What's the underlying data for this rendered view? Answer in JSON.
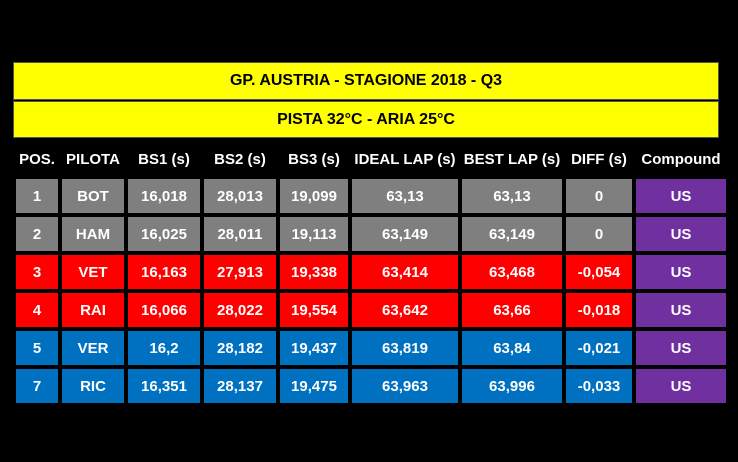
{
  "title": "GP. AUSTRIA - STAGIONE 2018 - Q3",
  "subtitle": "PISTA 32°C  - ARIA 25°C",
  "headers": [
    "POS.",
    "PILOTA",
    "BS1 (s)",
    "BS2 (s)",
    "BS3 (s)",
    "IDEAL LAP (s)",
    "BEST LAP (s)",
    "DIFF (s)",
    "Compound"
  ],
  "row_colors": {
    "gray": "#7f7f7f",
    "red": "#ff0000",
    "blue": "#0070c0",
    "compound": "#7030a0",
    "banner": "#ffff00"
  },
  "rows": [
    {
      "color": "gray",
      "cells": [
        "1",
        "BOT",
        "16,018",
        "28,013",
        "19,099",
        "63,13",
        "63,13",
        "0",
        "US"
      ]
    },
    {
      "color": "gray",
      "cells": [
        "2",
        "HAM",
        "16,025",
        "28,011",
        "19,113",
        "63,149",
        "63,149",
        "0",
        "US"
      ]
    },
    {
      "color": "red",
      "cells": [
        "3",
        "VET",
        "16,163",
        "27,913",
        "19,338",
        "63,414",
        "63,468",
        "-0,054",
        "US"
      ]
    },
    {
      "color": "red",
      "cells": [
        "4",
        "RAI",
        "16,066",
        "28,022",
        "19,554",
        "63,642",
        "63,66",
        "-0,018",
        "US"
      ]
    },
    {
      "color": "blue",
      "cells": [
        "5",
        "VER",
        "16,2",
        "28,182",
        "19,437",
        "63,819",
        "63,84",
        "-0,021",
        "US"
      ]
    },
    {
      "color": "blue",
      "cells": [
        "7",
        "RIC",
        "16,351",
        "28,137",
        "19,475",
        "63,963",
        "63,996",
        "-0,033",
        "US"
      ]
    }
  ]
}
